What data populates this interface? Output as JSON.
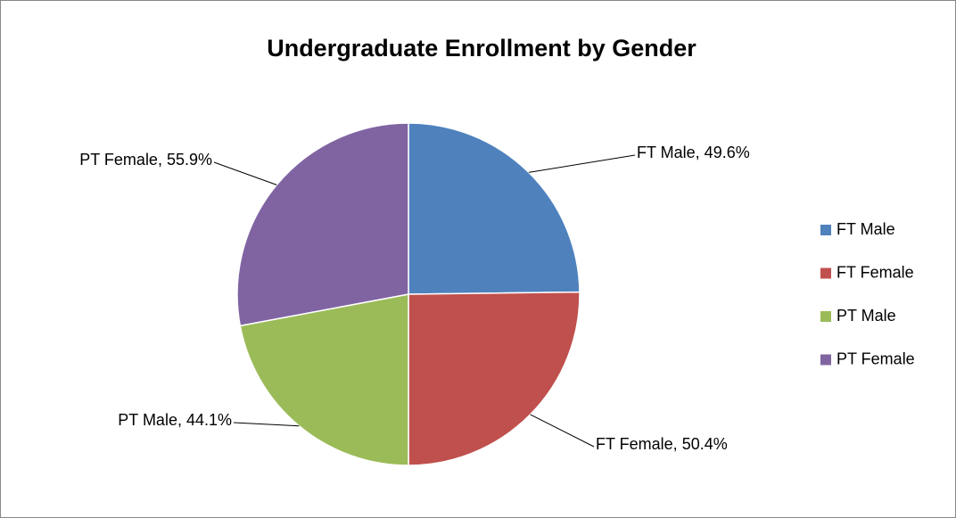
{
  "chart_data": {
    "type": "pie",
    "title": "Undergraduate Enrollment by Gender",
    "categories": [
      "FT Male",
      "FT Female",
      "PT Male",
      "PT Female"
    ],
    "values": [
      49.6,
      50.4,
      44.1,
      55.9
    ],
    "value_labels": [
      "FT Male, 49.6%",
      "FT Female, 50.4%",
      "PT Male, 44.1%",
      "PT Female, 55.9%"
    ],
    "colors": [
      "#4f81bd",
      "#c0504d",
      "#9bbb59",
      "#8064a2"
    ],
    "legend": "right"
  }
}
